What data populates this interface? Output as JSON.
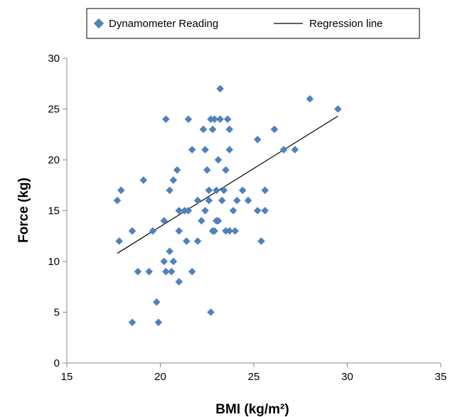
{
  "chart_data": {
    "type": "scatter",
    "xlabel": "BMI (kg/m²)",
    "ylabel": "Force (kg)",
    "xlim": [
      15,
      35
    ],
    "ylim": [
      0,
      30
    ],
    "xticks": [
      15,
      20,
      25,
      30,
      35
    ],
    "yticks": [
      0,
      5,
      10,
      15,
      20,
      25,
      30
    ],
    "grid": false,
    "legend_position": "top",
    "marker_color": "#4f81bd",
    "series": [
      {
        "name": "Dynamometer Reading",
        "type": "scatter",
        "points": [
          [
            17.7,
            16
          ],
          [
            17.8,
            12
          ],
          [
            17.9,
            17
          ],
          [
            18.5,
            4
          ],
          [
            18.5,
            13
          ],
          [
            18.8,
            9
          ],
          [
            19.1,
            18
          ],
          [
            19.4,
            9
          ],
          [
            19.6,
            13
          ],
          [
            19.8,
            6
          ],
          [
            19.9,
            4
          ],
          [
            20.2,
            14
          ],
          [
            20.2,
            10
          ],
          [
            20.3,
            24
          ],
          [
            20.3,
            9
          ],
          [
            20.5,
            17
          ],
          [
            20.5,
            11
          ],
          [
            20.6,
            9
          ],
          [
            20.7,
            18
          ],
          [
            20.7,
            10
          ],
          [
            20.9,
            19
          ],
          [
            21.0,
            13
          ],
          [
            21.0,
            15
          ],
          [
            21.0,
            8
          ],
          [
            21.3,
            15
          ],
          [
            21.4,
            12
          ],
          [
            21.5,
            24
          ],
          [
            21.5,
            15
          ],
          [
            21.7,
            21
          ],
          [
            21.7,
            9
          ],
          [
            22.0,
            16
          ],
          [
            22.0,
            12
          ],
          [
            22.2,
            14
          ],
          [
            22.3,
            23
          ],
          [
            22.4,
            21
          ],
          [
            22.4,
            15
          ],
          [
            22.5,
            19
          ],
          [
            22.6,
            17
          ],
          [
            22.6,
            16
          ],
          [
            22.7,
            24
          ],
          [
            22.7,
            5
          ],
          [
            22.8,
            23
          ],
          [
            22.8,
            13
          ],
          [
            22.9,
            24
          ],
          [
            22.9,
            13
          ],
          [
            23.0,
            17
          ],
          [
            23.0,
            14
          ],
          [
            23.1,
            20
          ],
          [
            23.1,
            14
          ],
          [
            23.2,
            27
          ],
          [
            23.2,
            24
          ],
          [
            23.3,
            16
          ],
          [
            23.4,
            17
          ],
          [
            23.5,
            19
          ],
          [
            23.5,
            13
          ],
          [
            23.6,
            24
          ],
          [
            23.7,
            23
          ],
          [
            23.7,
            21
          ],
          [
            23.7,
            13
          ],
          [
            23.9,
            15
          ],
          [
            24.0,
            13
          ],
          [
            24.1,
            16
          ],
          [
            24.4,
            17
          ],
          [
            24.7,
            16
          ],
          [
            25.2,
            22
          ],
          [
            25.2,
            15
          ],
          [
            25.4,
            12
          ],
          [
            25.6,
            17
          ],
          [
            25.6,
            15
          ],
          [
            26.1,
            23
          ],
          [
            26.6,
            21
          ],
          [
            27.2,
            21
          ],
          [
            28.0,
            26
          ],
          [
            29.5,
            25
          ]
        ]
      },
      {
        "name": "Regression line",
        "type": "line",
        "points": [
          [
            17.7,
            10.8
          ],
          [
            29.5,
            24.3
          ]
        ]
      }
    ]
  }
}
